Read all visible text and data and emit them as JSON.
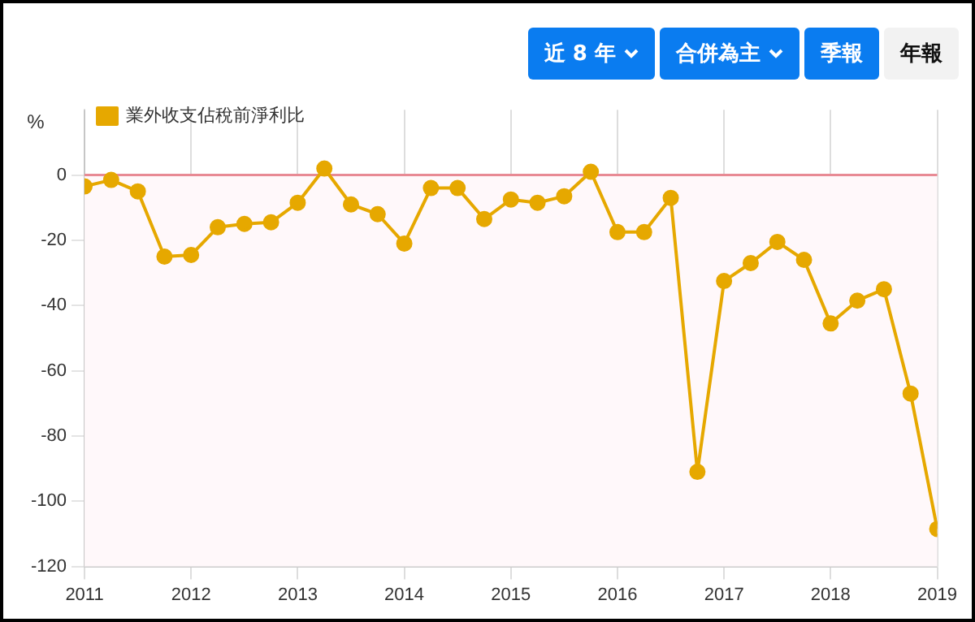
{
  "chart_data": {
    "type": "line",
    "ylabel": "%",
    "annotations": [
      "近 8 年",
      "合併為主",
      "季報",
      "年報"
    ],
    "x": [
      2011,
      2011.25,
      2011.5,
      2011.75,
      2012,
      2012.25,
      2012.5,
      2012.75,
      2013,
      2013.25,
      2013.5,
      2013.75,
      2014,
      2014.25,
      2014.5,
      2014.75,
      2015,
      2015.25,
      2015.5,
      2015.75,
      2016,
      2016.25,
      2016.5,
      2016.75,
      2017,
      2017.25,
      2017.5,
      2017.75,
      2018,
      2018.25,
      2018.5,
      2018.75,
      2019
    ],
    "series": [
      {
        "name": "業外收支佔稅前淨利比",
        "color": "#e6a800",
        "values": [
          -3.5,
          -1.5,
          -5,
          -25,
          -24.5,
          -16,
          -15,
          -14.5,
          -8.5,
          2,
          -9,
          -12,
          -21,
          -4,
          -4,
          -13.5,
          -7.5,
          -8.5,
          -6.5,
          1,
          -17.5,
          -17.5,
          -7,
          -91,
          -32.5,
          -27,
          -20.5,
          -26,
          -45.5,
          -38.5,
          -35,
          -67,
          -108.5
        ]
      }
    ],
    "xlim": [
      2011,
      2019
    ],
    "xticks": [
      2011,
      2012,
      2013,
      2014,
      2015,
      2016,
      2017,
      2018,
      2019
    ],
    "ylim": [
      -120,
      20
    ],
    "yticks": [
      -120,
      -100,
      -80,
      -60,
      -40,
      -20,
      0
    ],
    "ref_lines": [
      {
        "axis": "y",
        "value": 0,
        "color": "#e88a94"
      }
    ],
    "bands": [
      {
        "axis": "y",
        "from": -120,
        "to": 0,
        "color": "#fff8fa"
      }
    ],
    "grid": true,
    "legend": "top left",
    "marker": "circle",
    "line_style": "solid"
  }
}
